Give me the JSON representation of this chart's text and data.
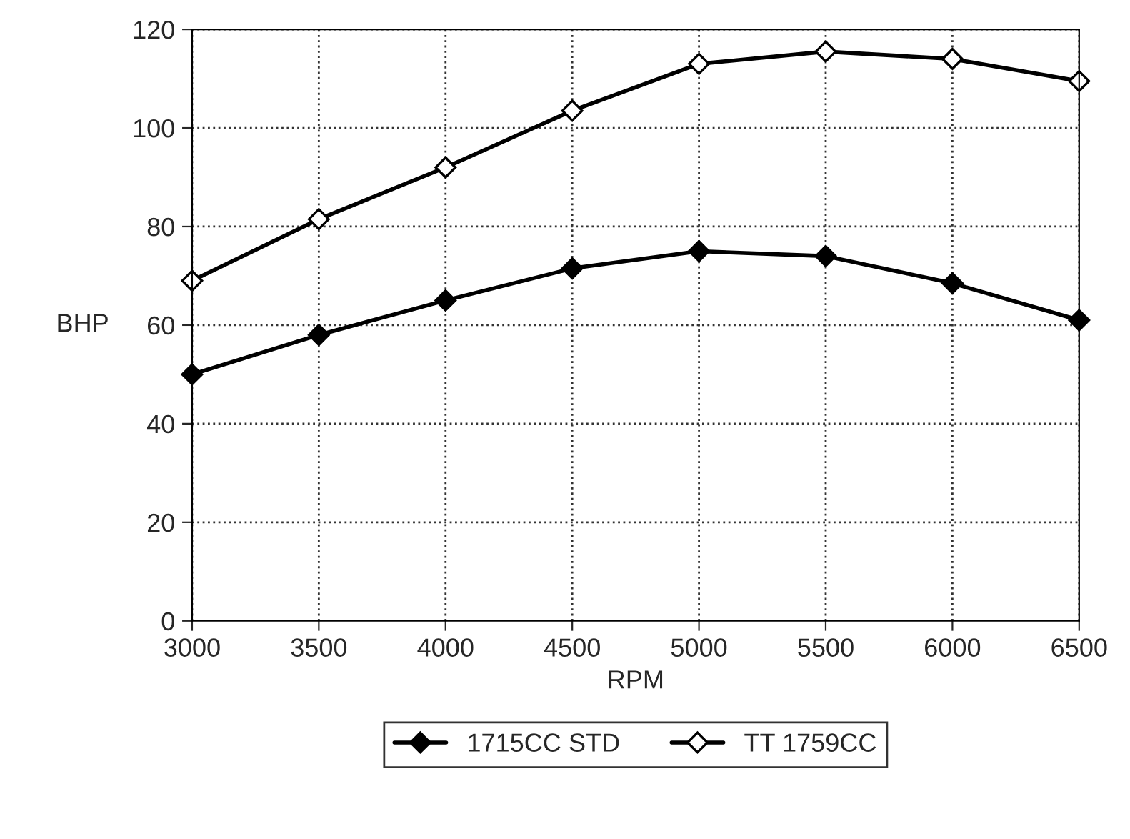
{
  "chart_data": {
    "type": "line",
    "xlabel": "RPM",
    "ylabel": "BHP",
    "x": [
      3000,
      3500,
      4000,
      4500,
      5000,
      5500,
      6000,
      6500
    ],
    "series": [
      {
        "name": "1715CC STD",
        "color": "#000000",
        "values": [
          50,
          58,
          65,
          71.5,
          75,
          74,
          68.5,
          61
        ]
      },
      {
        "name": "TT 1759CC",
        "color": "#000000",
        "values": [
          69,
          81.5,
          92,
          103.5,
          113,
          115.5,
          114,
          109.5
        ]
      }
    ],
    "xlim": [
      3000,
      6500
    ],
    "xticks": [
      3000,
      3500,
      4000,
      4500,
      5000,
      5500,
      6000,
      6500
    ],
    "ylim": [
      0,
      120
    ],
    "yticks": [
      0,
      20,
      40,
      60,
      80,
      100,
      120
    ],
    "grid": true,
    "legend": "bottom",
    "marker": "diamond",
    "line_style": "solid"
  }
}
